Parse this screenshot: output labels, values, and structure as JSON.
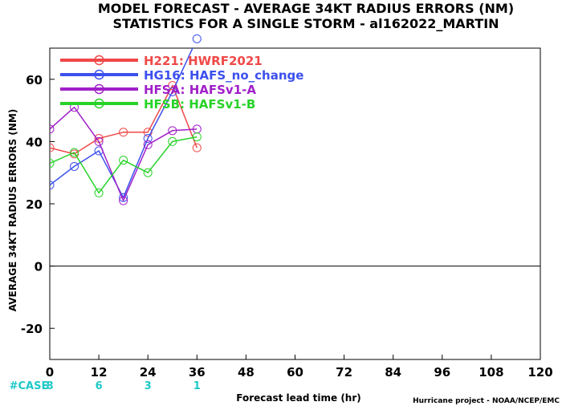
{
  "chart_data": {
    "type": "line",
    "title": "MODEL FORECAST - AVERAGE 34KT RADIUS ERRORS (NM)",
    "subtitle": "STATISTICS FOR A SINGLE STORM - al162022_MARTIN",
    "xlabel": "Forecast lead time (hr)",
    "ylabel": "AVERAGE 34KT RADIUS ERRORS (NM)",
    "xlim": [
      0,
      120
    ],
    "ylim": [
      -30,
      70
    ],
    "x_ticks": [
      0,
      12,
      24,
      36,
      48,
      60,
      72,
      84,
      96,
      108,
      120
    ],
    "y_ticks": [
      -20,
      0,
      20,
      40,
      60
    ],
    "x": [
      0,
      6,
      12,
      18,
      24,
      30,
      36
    ],
    "zero_line": true,
    "grid": false,
    "legend_position": "top-left",
    "series": [
      {
        "name": "H221: HWRF2021",
        "color": "#f04848",
        "values": [
          38,
          36,
          41,
          43,
          43,
          58,
          38
        ]
      },
      {
        "name": "HG16: HAFS_no_change",
        "color": "#3c50ee",
        "values": [
          26,
          32,
          37,
          22,
          41,
          56,
          73
        ]
      },
      {
        "name": "HFSA: HAFSv1-A",
        "color": "#a020c8",
        "values": [
          44,
          51,
          40,
          21,
          39,
          43.5,
          44
        ]
      },
      {
        "name": "HFSB: HAFSv1-B",
        "color": "#28d228",
        "values": [
          33,
          36.5,
          23.5,
          34,
          30,
          40,
          41.5
        ]
      }
    ],
    "cases": {
      "label": "#CASE",
      "color": "#1ec8c8",
      "entries": [
        {
          "x": 0,
          "value": "8"
        },
        {
          "x": 12,
          "value": "6"
        },
        {
          "x": 24,
          "value": "3"
        },
        {
          "x": 36,
          "value": "1"
        }
      ]
    },
    "credit": "Hurricane project - NOAA/NCEP/EMC"
  }
}
